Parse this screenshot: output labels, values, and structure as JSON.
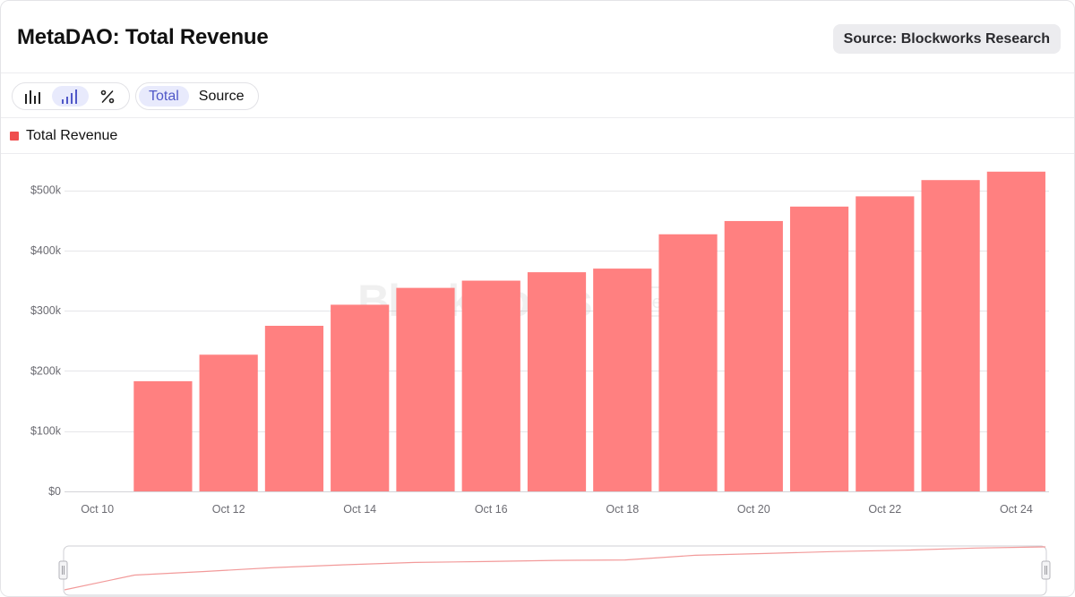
{
  "header": {
    "title": "MetaDAO: Total Revenue",
    "source": "Source: Blockworks Research"
  },
  "toolbar": {
    "icons": [
      {
        "name": "bar-chart-icon",
        "active": false
      },
      {
        "name": "cumulative-bar-chart-icon",
        "active": true
      },
      {
        "name": "percent-icon",
        "active": false
      }
    ],
    "tabs": [
      {
        "label": "Total",
        "active": true
      },
      {
        "label": "Source",
        "active": false
      }
    ]
  },
  "watermark": {
    "brand": "Blockworks",
    "sub": "Research"
  },
  "colors": {
    "series": "#ff8080",
    "legend": "#ef4e4e",
    "grid": "#e6e6e9",
    "tab_active_bg": "#e8eafc",
    "tab_active_text": "#5058c8"
  },
  "chart_data": {
    "type": "bar",
    "series": [
      {
        "name": "Total Revenue",
        "values": [
          0,
          183000,
          227000,
          275000,
          310000,
          338000,
          350000,
          364000,
          370000,
          427000,
          449000,
          473000,
          490000,
          517000,
          531000
        ]
      }
    ],
    "x": [
      "Oct 10",
      "Oct 11",
      "Oct 12",
      "Oct 13",
      "Oct 14",
      "Oct 15",
      "Oct 16",
      "Oct 17",
      "Oct 18",
      "Oct 19",
      "Oct 20",
      "Oct 21",
      "Oct 22",
      "Oct 23",
      "Oct 24"
    ],
    "x_tick_labels": [
      "Oct 10",
      "Oct 12",
      "Oct 14",
      "Oct 16",
      "Oct 18",
      "Oct 20",
      "Oct 22",
      "Oct 24"
    ],
    "y_tick_labels": [
      "$0",
      "$100k",
      "$200k",
      "$300k",
      "$400k",
      "$500k"
    ],
    "y_ticks": [
      0,
      100000,
      200000,
      300000,
      400000,
      500000
    ],
    "ylim": [
      0,
      550000
    ],
    "grid": true,
    "legend": "top-left"
  }
}
